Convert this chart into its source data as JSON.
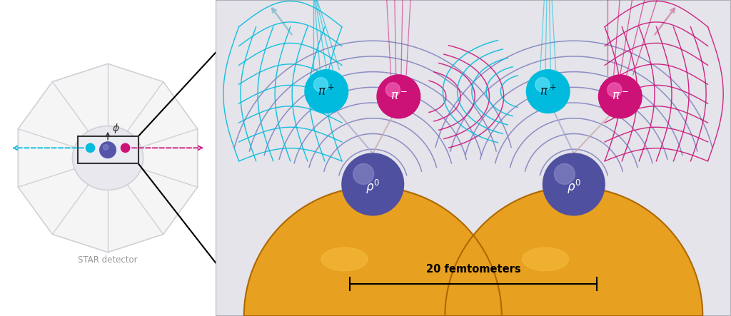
{
  "bg_white": "#ffffff",
  "right_panel_bg": "#e4e4ea",
  "spoke_color": "#d0d0d8",
  "spoke_fill": "#e8e8f0",
  "cyan": "#00bbdd",
  "magenta": "#cc1177",
  "purple_rho": "#5555aa",
  "purple_wave": "#7777bb",
  "orange": "#e8a020",
  "dark": "#222222",
  "gray_stem": "#aaaacc",
  "star_detector_text": "STAR detector",
  "femtometer_label": "20 femtometers"
}
